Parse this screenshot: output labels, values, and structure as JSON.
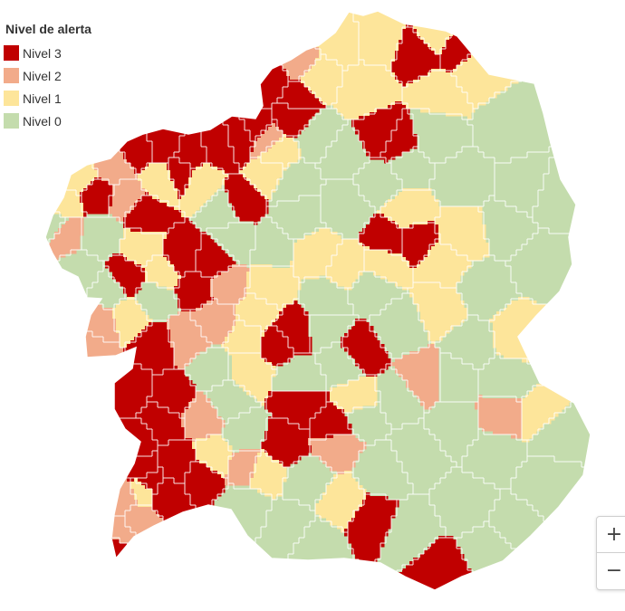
{
  "legend": {
    "title": "Nivel de alerta",
    "items": [
      {
        "level": 3,
        "label": "Nivel 3",
        "color": "#c00000"
      },
      {
        "level": 2,
        "label": "Nivel 2",
        "color": "#f2ab8a"
      },
      {
        "level": 1,
        "label": "Nivel 1",
        "color": "#fde59a"
      },
      {
        "level": 0,
        "label": "Nivel 0",
        "color": "#c4dcad"
      }
    ]
  },
  "colors": {
    "background": "#ffffff",
    "border": "#ffffff"
  },
  "zoom": {
    "in_label": "+",
    "out_label": "−"
  }
}
